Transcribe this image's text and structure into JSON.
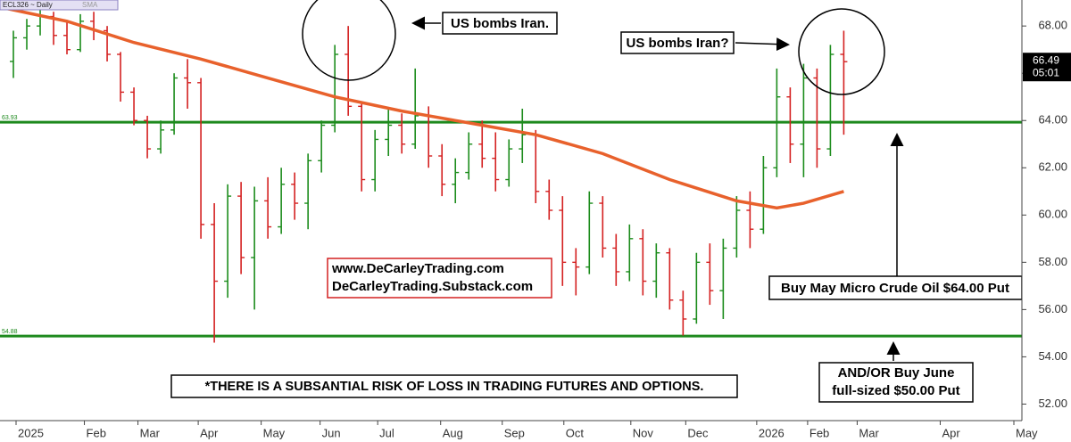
{
  "chart_data": {
    "type": "ohlc",
    "symbol": "ECL326 ~ Daily",
    "indicator": "SMA",
    "xlim": [
      0,
      76.3
    ],
    "xticks": [
      {
        "value": 1.2,
        "label": "2025"
      },
      {
        "value": 6.3,
        "label": "Feb"
      },
      {
        "value": 10.3,
        "label": "Mar"
      },
      {
        "value": 14.8,
        "label": "Apr"
      },
      {
        "value": 19.5,
        "label": "May"
      },
      {
        "value": 23.9,
        "label": "Jun"
      },
      {
        "value": 28.2,
        "label": "Jul"
      },
      {
        "value": 32.9,
        "label": "Aug"
      },
      {
        "value": 37.5,
        "label": "Sep"
      },
      {
        "value": 42.1,
        "label": "Oct"
      },
      {
        "value": 47.1,
        "label": "Nov"
      },
      {
        "value": 51.2,
        "label": "Dec"
      },
      {
        "value": 56.5,
        "label": "2026"
      },
      {
        "value": 60.3,
        "label": "Feb"
      },
      {
        "value": 64,
        "label": "Mar"
      },
      {
        "value": 70.2,
        "label": "Apr"
      },
      {
        "value": 75.7,
        "label": "May"
      }
    ],
    "ylim": [
      51.3,
      69.1
    ],
    "yticks": [
      {
        "value": 52,
        "label": "52.00"
      },
      {
        "value": 54,
        "label": "54.00"
      },
      {
        "value": 56,
        "label": "56.00"
      },
      {
        "value": 58,
        "label": "58.00"
      },
      {
        "value": 60,
        "label": "60.00"
      },
      {
        "value": 62,
        "label": "62.00"
      },
      {
        "value": 64,
        "label": "64.00"
      },
      {
        "value": 66,
        "label": "66.00"
      },
      {
        "value": 68,
        "label": "68.00"
      }
    ],
    "up_color": "#1c8c1c",
    "down_color": "#d42020",
    "series": [
      {
        "x": [
          1,
          2,
          3,
          4,
          5,
          6,
          7,
          8,
          9,
          10,
          11,
          12,
          13,
          14,
          15,
          16,
          17,
          18,
          19,
          20,
          21,
          22,
          23,
          24,
          25,
          26,
          27,
          28,
          29,
          30,
          31,
          32,
          33,
          34,
          35,
          36,
          37,
          38,
          39,
          40,
          41,
          42,
          43,
          44,
          45,
          46,
          47,
          48,
          49,
          50,
          51,
          52,
          53,
          54,
          55,
          56,
          57,
          58,
          59,
          60,
          61,
          62,
          63
        ],
        "open": [
          66.5,
          67.5,
          68.0,
          68.4,
          67.6,
          67.0,
          68.2,
          67.8,
          66.8,
          65.2,
          64.0,
          62.8,
          63.6,
          65.8,
          65.6,
          59.6,
          57.2,
          60.8,
          58.2,
          60.6,
          59.5,
          61.3,
          60.5,
          62.3,
          63.8,
          66.8,
          64.6,
          61.5,
          63.2,
          63.8,
          63.0,
          64.2,
          62.5,
          61.3,
          61.8,
          63.0,
          62.4,
          61.5,
          62.8,
          63.4,
          61.0,
          60.2,
          58.0,
          57.8,
          60.5,
          58.6,
          57.6,
          59.0,
          57.2,
          58.4,
          56.4,
          55.6,
          58.0,
          56.8,
          58.6,
          60.2,
          59.4,
          62.0,
          65.0,
          63.0,
          65.8,
          62.8,
          66.8
        ],
        "high": [
          67.8,
          68.3,
          68.8,
          68.6,
          68.2,
          68.5,
          68.6,
          68.0,
          66.9,
          65.4,
          64.2,
          64.0,
          66.0,
          66.6,
          65.8,
          60.5,
          61.3,
          61.4,
          61.2,
          61.6,
          62.0,
          61.8,
          62.6,
          64.0,
          67.2,
          68.0,
          64.8,
          63.6,
          64.5,
          64.3,
          66.2,
          64.6,
          63.0,
          62.4,
          63.5,
          64.0,
          63.5,
          63.2,
          64.5,
          63.6,
          61.5,
          60.8,
          58.6,
          61.0,
          60.8,
          59.2,
          59.6,
          59.4,
          58.8,
          58.6,
          56.8,
          58.4,
          58.8,
          59.0,
          60.8,
          61.0,
          62.5,
          66.2,
          65.4,
          66.4,
          66.2,
          67.2,
          67.8
        ],
        "low": [
          65.8,
          67.0,
          67.6,
          67.2,
          66.8,
          66.9,
          67.4,
          66.5,
          64.8,
          63.8,
          62.4,
          62.6,
          63.4,
          64.5,
          59.0,
          54.6,
          56.5,
          57.5,
          56.0,
          59.0,
          59.2,
          59.8,
          59.4,
          61.8,
          63.5,
          64.2,
          61.0,
          61.0,
          62.5,
          62.6,
          62.8,
          62.0,
          60.8,
          60.5,
          61.5,
          62.0,
          61.0,
          61.2,
          62.2,
          60.5,
          59.8,
          57.0,
          56.6,
          57.5,
          58.2,
          57.0,
          57.2,
          56.6,
          56.5,
          56.0,
          54.9,
          55.4,
          56.2,
          55.6,
          58.2,
          58.6,
          59.2,
          61.6,
          62.2,
          61.6,
          62.0,
          62.5,
          63.4
        ],
        "close": [
          67.5,
          68.0,
          68.4,
          67.6,
          67.0,
          68.2,
          67.8,
          66.8,
          65.2,
          64.0,
          62.8,
          63.6,
          65.8,
          65.6,
          59.6,
          57.2,
          60.8,
          58.2,
          60.6,
          59.5,
          61.3,
          60.5,
          62.3,
          63.8,
          66.8,
          64.6,
          61.5,
          63.2,
          63.8,
          63.0,
          64.2,
          62.5,
          61.3,
          61.8,
          63.0,
          62.4,
          61.5,
          62.8,
          63.4,
          61.0,
          60.2,
          58.0,
          57.8,
          60.5,
          58.6,
          57.6,
          59.0,
          57.2,
          58.4,
          56.4,
          55.6,
          58.0,
          56.8,
          58.6,
          60.2,
          59.4,
          62.0,
          65.0,
          63.0,
          65.8,
          62.8,
          66.8,
          66.49
        ]
      },
      {
        "name": "SMA",
        "color": "#e8612c",
        "x": [
          0,
          5,
          10,
          15,
          20,
          25,
          30,
          35,
          40,
          45,
          50,
          55,
          58,
          60,
          63
        ],
        "values": [
          68.8,
          68.2,
          67.3,
          66.6,
          65.8,
          65.0,
          64.4,
          63.9,
          63.4,
          62.6,
          61.5,
          60.6,
          60.3,
          60.5,
          61.0
        ]
      }
    ],
    "hlines": [
      63.93,
      54.88
    ],
    "hline_color": "#1e8a1e",
    "timer": "05:01",
    "annotations": [
      "US bombs Iran.",
      "US bombs Iran?",
      "www.DeCarleyTrading.com",
      "DeCarleyTrading.Substack.com",
      "Buy May Micro Crude Oil $64.00 Put",
      "AND/OR Buy June",
      "full-sized $50.00 Put",
      "*THERE IS A SUBSANTIAL RISK OF LOSS IN TRADING FUTURES AND OPTIONS."
    ]
  }
}
